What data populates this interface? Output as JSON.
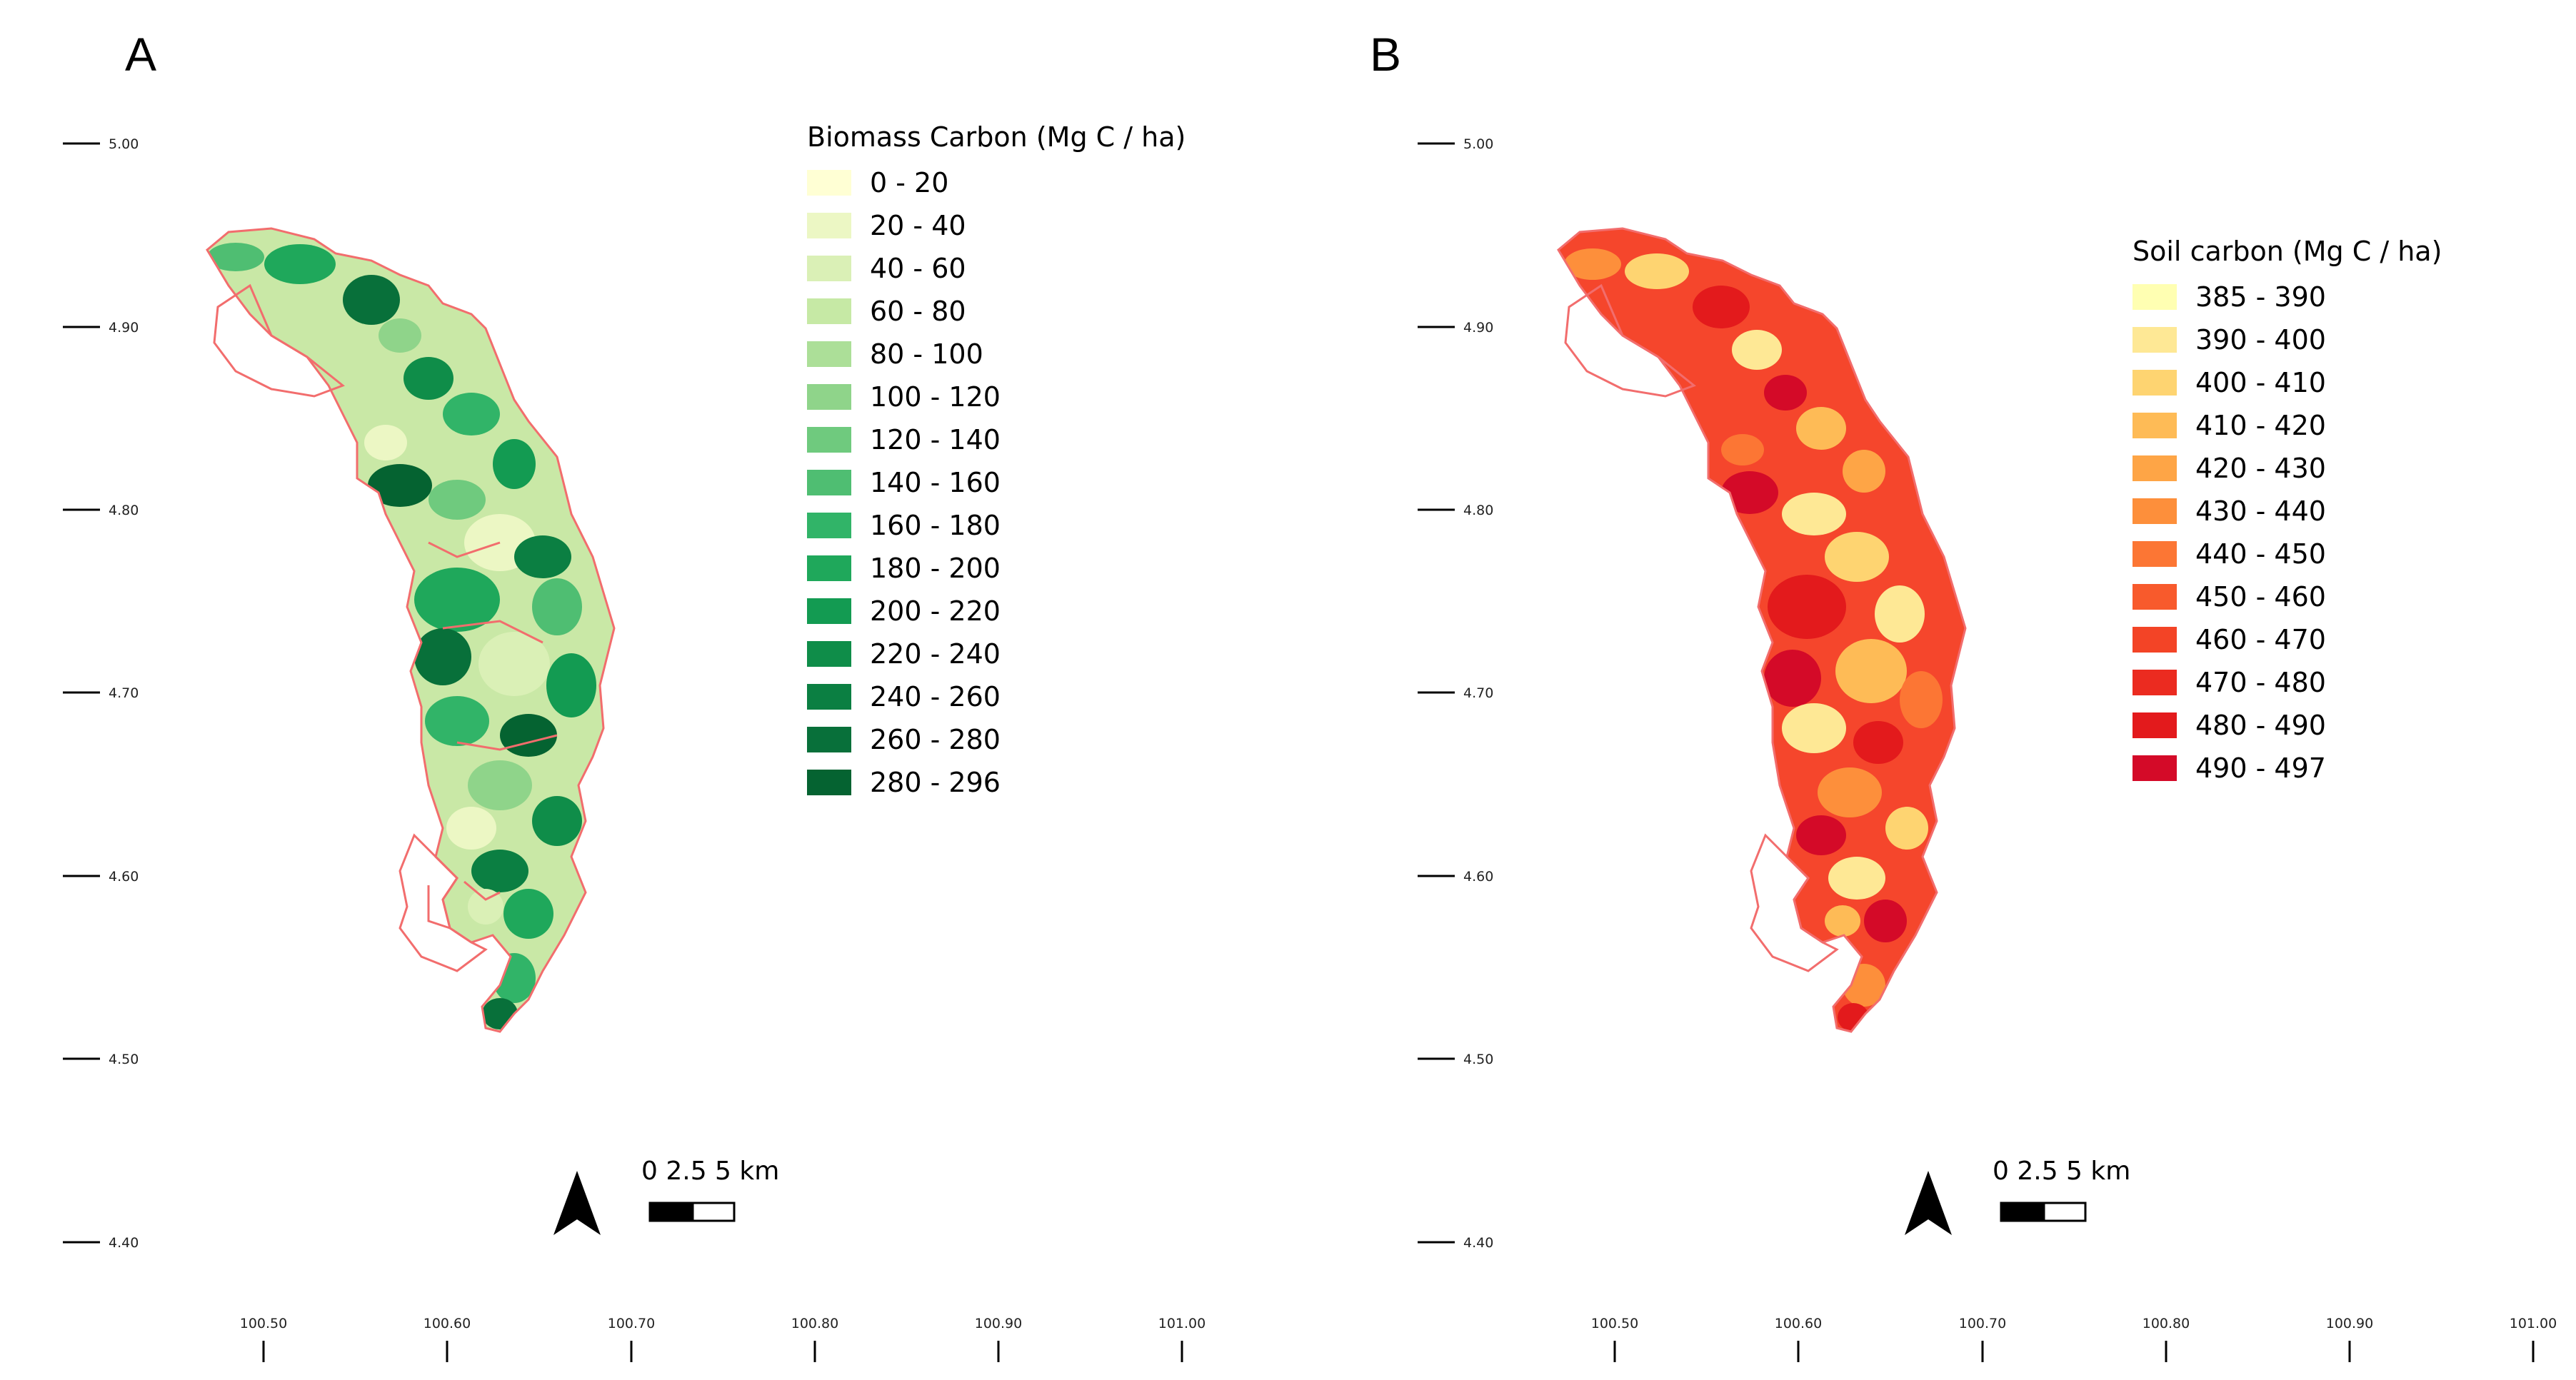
{
  "panels": [
    {
      "label": "A",
      "legend": {
        "title": "Biomass Carbon (Mg C / ha)",
        "items": [
          {
            "label": "0 - 20",
            "color": "#ffffd4"
          },
          {
            "label": "20 - 40",
            "color": "#ecf7c4"
          },
          {
            "label": "40 - 60",
            "color": "#daf0b6"
          },
          {
            "label": "60 - 80",
            "color": "#c6e9a5"
          },
          {
            "label": "80 - 100",
            "color": "#acdf98"
          },
          {
            "label": "100 - 120",
            "color": "#8fd48a"
          },
          {
            "label": "120 - 140",
            "color": "#6fca7e"
          },
          {
            "label": "140 - 160",
            "color": "#4fbe72"
          },
          {
            "label": "160 - 180",
            "color": "#31b468"
          },
          {
            "label": "180 - 200",
            "color": "#1fa85b"
          },
          {
            "label": "200 - 220",
            "color": "#139b52"
          },
          {
            "label": "220 - 240",
            "color": "#0f8d49"
          },
          {
            "label": "240 - 260",
            "color": "#0b7f42"
          },
          {
            "label": "260 - 280",
            "color": "#08703a"
          },
          {
            "label": "280 - 296",
            "color": "#056331"
          }
        ]
      },
      "scale_bar": "0  2.5  5 km"
    },
    {
      "label": "B",
      "legend": {
        "title": "Soil carbon (Mg C / ha)",
        "items": [
          {
            "label": "385 - 390",
            "color": "#ffffb2"
          },
          {
            "label": "390 - 400",
            "color": "#fee895"
          },
          {
            "label": "400 - 410",
            "color": "#fed471"
          },
          {
            "label": "410 - 420",
            "color": "#febb56"
          },
          {
            "label": "420 - 430",
            "color": "#fea546"
          },
          {
            "label": "430 - 440",
            "color": "#fd8f3b"
          },
          {
            "label": "440 - 450",
            "color": "#fc7634"
          },
          {
            "label": "450 - 460",
            "color": "#f85a2c"
          },
          {
            "label": "460 - 470",
            "color": "#f34426"
          },
          {
            "label": "470 - 480",
            "color": "#eb2b20"
          },
          {
            "label": "480 - 490",
            "color": "#e31a1c"
          },
          {
            "label": "490 - 497",
            "color": "#d40a28"
          }
        ]
      },
      "scale_bar": "0  2.5  5 km"
    }
  ],
  "axes": {
    "lat_ticks": [
      "5.00",
      "4.90",
      "4.80",
      "4.70",
      "4.60",
      "4.50",
      "4.40"
    ],
    "lon_ticks": [
      "100.50",
      "100.60",
      "100.70",
      "100.80",
      "100.90",
      "101.00"
    ]
  },
  "colors": {
    "outline": "#f26d6d",
    "biomass_base": "#c9e8a6",
    "soil_base": "#f5462c"
  }
}
